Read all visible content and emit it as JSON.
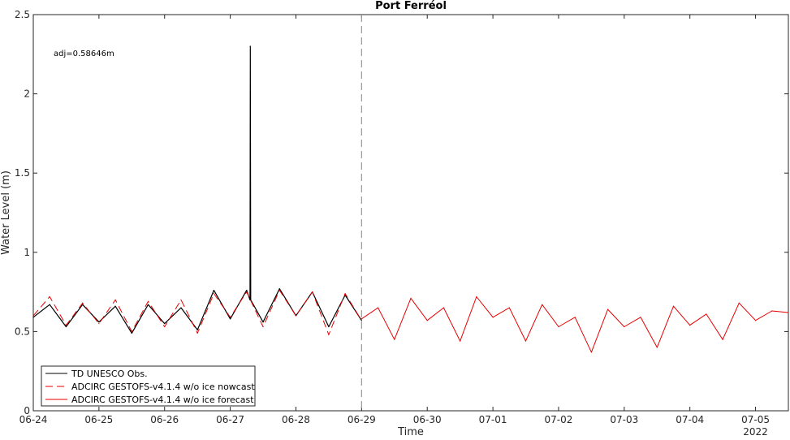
{
  "chart_data": {
    "type": "line",
    "title": "Port Ferréol",
    "xlabel": "Time",
    "ylabel": "Water Level (m)",
    "year_label": "2022",
    "annotation": "adj=0.58646m",
    "ylim": [
      0,
      2.5
    ],
    "xlim": [
      "2022-06-24 00:00",
      "2022-07-05 12:00"
    ],
    "x_tick_labels": [
      "06-24",
      "06-25",
      "06-26",
      "06-27",
      "06-28",
      "06-29",
      "06-30",
      "07-01",
      "07-02",
      "07-03",
      "07-04",
      "07-05"
    ],
    "y_tick_labels": [
      "0",
      "0.5",
      "1",
      "1.5",
      "2",
      "2.5"
    ],
    "y_ticks": [
      0,
      0.5,
      1,
      1.5,
      2,
      2.5
    ],
    "grid": false,
    "legend_position": "bottom-left",
    "vertical_marker": {
      "x": "2022-06-29 00:00",
      "style": "dashed",
      "color": "#999999"
    },
    "series": [
      {
        "name": "TD UNESCO Obs.",
        "color": "#000000",
        "style": "solid",
        "x": [
          "2022-06-24 00:00",
          "2022-06-24 06:00",
          "2022-06-24 12:00",
          "2022-06-24 18:00",
          "2022-06-25 00:00",
          "2022-06-25 06:00",
          "2022-06-25 12:00",
          "2022-06-25 18:00",
          "2022-06-26 00:00",
          "2022-06-26 06:00",
          "2022-06-26 12:00",
          "2022-06-26 18:00",
          "2022-06-27 00:00",
          "2022-06-27 06:00",
          "2022-06-27 07:12",
          "2022-06-27 07:20",
          "2022-06-27 07:28",
          "2022-06-27 12:00",
          "2022-06-27 18:00",
          "2022-06-28 00:00",
          "2022-06-28 06:00",
          "2022-06-28 12:00",
          "2022-06-28 18:00",
          "2022-06-29 00:00"
        ],
        "y": [
          0.59,
          0.67,
          0.53,
          0.67,
          0.56,
          0.66,
          0.49,
          0.67,
          0.55,
          0.65,
          0.51,
          0.76,
          0.58,
          0.76,
          0.7,
          2.3,
          0.7,
          0.56,
          0.77,
          0.6,
          0.75,
          0.53,
          0.73,
          0.57
        ]
      },
      {
        "name": "ADCIRC GESTOFS-v4.1.4 w/o ice nowcast",
        "color": "#e60000",
        "style": "dashed",
        "x": [
          "2022-06-24 00:00",
          "2022-06-24 06:00",
          "2022-06-24 12:00",
          "2022-06-24 18:00",
          "2022-06-25 00:00",
          "2022-06-25 06:00",
          "2022-06-25 12:00",
          "2022-06-25 18:00",
          "2022-06-26 00:00",
          "2022-06-26 06:00",
          "2022-06-26 12:00",
          "2022-06-26 18:00",
          "2022-06-27 00:00",
          "2022-06-27 06:00",
          "2022-06-27 12:00",
          "2022-06-27 18:00",
          "2022-06-28 00:00",
          "2022-06-28 06:00",
          "2022-06-28 12:00",
          "2022-06-28 18:00",
          "2022-06-29 00:00"
        ],
        "y": [
          0.6,
          0.72,
          0.54,
          0.68,
          0.55,
          0.7,
          0.5,
          0.69,
          0.53,
          0.7,
          0.49,
          0.74,
          0.59,
          0.75,
          0.53,
          0.76,
          0.6,
          0.75,
          0.48,
          0.74,
          0.57
        ]
      },
      {
        "name": "ADCIRC GESTOFS-v4.1.4 w/o ice forecast",
        "color": "#e60000",
        "style": "solid",
        "x": [
          "2022-06-29 00:00",
          "2022-06-29 06:00",
          "2022-06-29 12:00",
          "2022-06-29 18:00",
          "2022-06-30 00:00",
          "2022-06-30 06:00",
          "2022-06-30 12:00",
          "2022-06-30 18:00",
          "2022-07-01 00:00",
          "2022-07-01 06:00",
          "2022-07-01 12:00",
          "2022-07-01 18:00",
          "2022-07-02 00:00",
          "2022-07-02 06:00",
          "2022-07-02 12:00",
          "2022-07-02 18:00",
          "2022-07-03 00:00",
          "2022-07-03 06:00",
          "2022-07-03 12:00",
          "2022-07-03 18:00",
          "2022-07-04 00:00",
          "2022-07-04 06:00",
          "2022-07-04 12:00",
          "2022-07-04 18:00",
          "2022-07-05 00:00",
          "2022-07-05 06:00",
          "2022-07-05 12:00"
        ],
        "y": [
          0.58,
          0.65,
          0.45,
          0.71,
          0.57,
          0.65,
          0.44,
          0.72,
          0.59,
          0.65,
          0.44,
          0.67,
          0.53,
          0.59,
          0.37,
          0.64,
          0.53,
          0.59,
          0.4,
          0.66,
          0.54,
          0.61,
          0.45,
          0.68,
          0.57,
          0.63,
          0.62
        ]
      }
    ]
  }
}
